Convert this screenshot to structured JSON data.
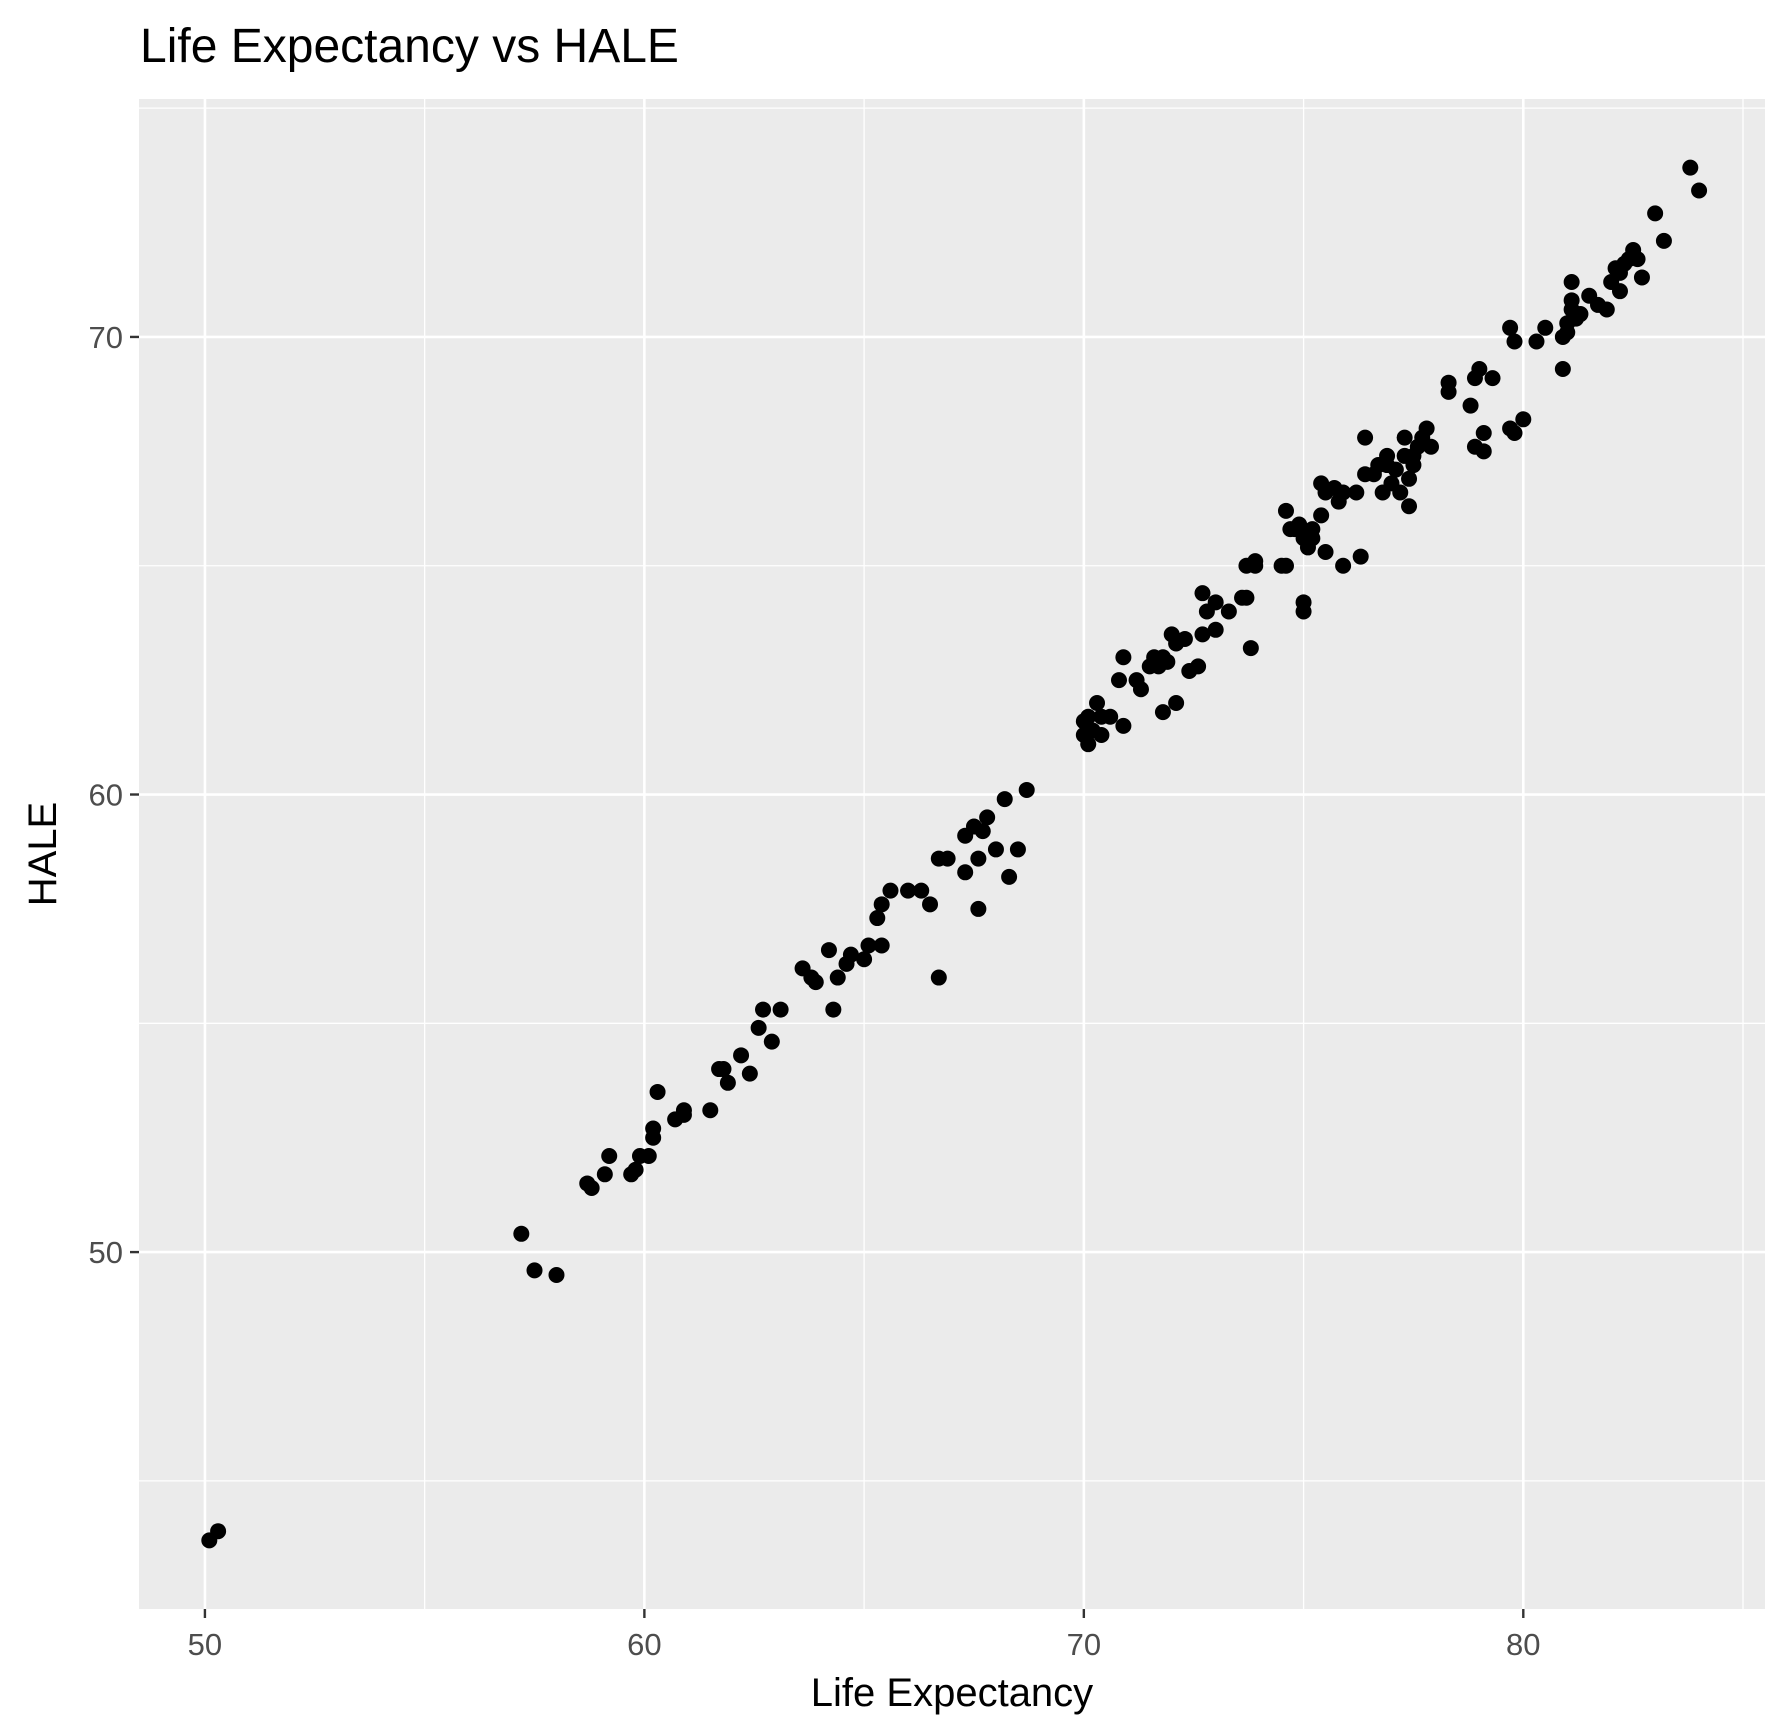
{
  "chart_data": {
    "type": "scatter",
    "title": "Life Expectancy vs HALE",
    "xlabel": "Life Expectancy",
    "ylabel": "HALE",
    "xlim": [
      48.5,
      85.5
    ],
    "ylim": [
      42.2,
      75.2
    ],
    "x_ticks_major": [
      50,
      60,
      70,
      80
    ],
    "x_ticks_minor": [
      55,
      65,
      75,
      85
    ],
    "y_ticks_major": [
      50,
      60,
      70
    ],
    "y_ticks_minor": [
      45,
      55,
      65,
      75
    ],
    "grid": true,
    "legend": "none",
    "point_color": "#000000",
    "panel_background": "#ebebeb",
    "grid_color": "#ffffff",
    "points": [
      [
        50.1,
        43.7
      ],
      [
        50.3,
        43.9
      ],
      [
        57.2,
        50.4
      ],
      [
        57.5,
        49.6
      ],
      [
        58.0,
        49.5
      ],
      [
        58.7,
        51.5
      ],
      [
        58.8,
        51.4
      ],
      [
        59.1,
        51.7
      ],
      [
        59.2,
        52.1
      ],
      [
        59.7,
        51.7
      ],
      [
        59.8,
        51.8
      ],
      [
        59.9,
        52.1
      ],
      [
        60.1,
        52.1
      ],
      [
        60.2,
        52.5
      ],
      [
        60.2,
        52.7
      ],
      [
        60.3,
        53.5
      ],
      [
        60.7,
        52.9
      ],
      [
        60.9,
        53.0
      ],
      [
        60.9,
        53.1
      ],
      [
        61.5,
        53.1
      ],
      [
        61.7,
        54.0
      ],
      [
        61.8,
        54.0
      ],
      [
        61.9,
        53.7
      ],
      [
        62.2,
        54.3
      ],
      [
        62.4,
        53.9
      ],
      [
        62.6,
        54.9
      ],
      [
        62.7,
        55.3
      ],
      [
        62.9,
        54.6
      ],
      [
        63.1,
        55.3
      ],
      [
        63.6,
        56.2
      ],
      [
        63.8,
        56.0
      ],
      [
        63.9,
        55.9
      ],
      [
        64.2,
        56.6
      ],
      [
        64.3,
        55.3
      ],
      [
        64.4,
        56.0
      ],
      [
        64.6,
        56.3
      ],
      [
        64.7,
        56.5
      ],
      [
        65.0,
        56.4
      ],
      [
        65.1,
        56.7
      ],
      [
        65.3,
        57.3
      ],
      [
        65.4,
        57.6
      ],
      [
        65.4,
        56.7
      ],
      [
        65.6,
        57.9
      ],
      [
        66.0,
        57.9
      ],
      [
        66.3,
        57.9
      ],
      [
        66.5,
        57.6
      ],
      [
        66.7,
        58.6
      ],
      [
        66.7,
        56.0
      ],
      [
        66.9,
        58.6
      ],
      [
        67.3,
        59.1
      ],
      [
        67.3,
        58.3
      ],
      [
        67.5,
        59.3
      ],
      [
        67.6,
        58.6
      ],
      [
        67.6,
        57.5
      ],
      [
        67.7,
        59.2
      ],
      [
        67.8,
        59.5
      ],
      [
        68.0,
        58.8
      ],
      [
        68.2,
        59.9
      ],
      [
        68.3,
        58.2
      ],
      [
        68.5,
        58.8
      ],
      [
        68.7,
        60.1
      ],
      [
        70.0,
        61.3
      ],
      [
        70.0,
        61.6
      ],
      [
        70.1,
        61.7
      ],
      [
        70.1,
        61.1
      ],
      [
        70.2,
        61.4
      ],
      [
        70.3,
        62.0
      ],
      [
        70.4,
        61.7
      ],
      [
        70.4,
        61.3
      ],
      [
        70.6,
        61.7
      ],
      [
        70.8,
        62.5
      ],
      [
        70.9,
        63.0
      ],
      [
        70.9,
        61.5
      ],
      [
        71.2,
        62.5
      ],
      [
        71.3,
        62.3
      ],
      [
        71.5,
        62.8
      ],
      [
        71.6,
        63.0
      ],
      [
        71.7,
        62.8
      ],
      [
        71.8,
        61.8
      ],
      [
        71.8,
        63.0
      ],
      [
        71.9,
        62.9
      ],
      [
        72.0,
        63.5
      ],
      [
        72.1,
        63.3
      ],
      [
        72.1,
        62.0
      ],
      [
        72.3,
        63.4
      ],
      [
        72.4,
        62.7
      ],
      [
        72.6,
        62.8
      ],
      [
        72.7,
        63.5
      ],
      [
        72.7,
        64.4
      ],
      [
        72.8,
        64.0
      ],
      [
        73.0,
        64.2
      ],
      [
        73.0,
        63.6
      ],
      [
        73.3,
        64.0
      ],
      [
        73.6,
        64.3
      ],
      [
        73.7,
        64.3
      ],
      [
        73.7,
        65.0
      ],
      [
        73.8,
        63.2
      ],
      [
        73.9,
        65.1
      ],
      [
        73.9,
        65.0
      ],
      [
        74.5,
        65.0
      ],
      [
        74.6,
        65.0
      ],
      [
        74.6,
        66.2
      ],
      [
        74.7,
        65.8
      ],
      [
        74.8,
        65.8
      ],
      [
        74.9,
        65.9
      ],
      [
        75.0,
        65.6
      ],
      [
        75.0,
        64.2
      ],
      [
        75.0,
        64.0
      ],
      [
        75.1,
        65.4
      ],
      [
        75.2,
        65.8
      ],
      [
        75.2,
        65.6
      ],
      [
        75.4,
        66.8
      ],
      [
        75.4,
        66.1
      ],
      [
        75.5,
        66.6
      ],
      [
        75.5,
        65.3
      ],
      [
        75.7,
        66.7
      ],
      [
        75.8,
        66.4
      ],
      [
        75.9,
        65.0
      ],
      [
        75.9,
        66.6
      ],
      [
        76.2,
        66.6
      ],
      [
        76.3,
        65.2
      ],
      [
        76.4,
        67.8
      ],
      [
        76.4,
        67.0
      ],
      [
        76.6,
        67.0
      ],
      [
        76.7,
        67.2
      ],
      [
        76.8,
        66.6
      ],
      [
        76.9,
        67.2
      ],
      [
        76.9,
        67.4
      ],
      [
        77.0,
        66.8
      ],
      [
        77.1,
        67.1
      ],
      [
        77.2,
        66.6
      ],
      [
        77.3,
        67.8
      ],
      [
        77.3,
        67.4
      ],
      [
        77.4,
        66.3
      ],
      [
        77.4,
        66.9
      ],
      [
        77.5,
        67.4
      ],
      [
        77.5,
        67.2
      ],
      [
        77.6,
        67.6
      ],
      [
        77.7,
        67.8
      ],
      [
        77.8,
        68.0
      ],
      [
        77.9,
        67.6
      ],
      [
        78.3,
        69.0
      ],
      [
        78.3,
        68.8
      ],
      [
        78.8,
        68.5
      ],
      [
        78.9,
        69.1
      ],
      [
        78.9,
        67.6
      ],
      [
        79.0,
        69.3
      ],
      [
        79.1,
        67.9
      ],
      [
        79.1,
        67.5
      ],
      [
        79.3,
        69.1
      ],
      [
        79.7,
        68.0
      ],
      [
        79.7,
        70.2
      ],
      [
        79.8,
        69.9
      ],
      [
        79.8,
        67.9
      ],
      [
        80.0,
        68.2
      ],
      [
        80.3,
        69.9
      ],
      [
        80.5,
        70.2
      ],
      [
        80.9,
        69.3
      ],
      [
        80.9,
        70.0
      ],
      [
        81.0,
        70.1
      ],
      [
        81.0,
        70.3
      ],
      [
        81.1,
        70.6
      ],
      [
        81.1,
        70.8
      ],
      [
        81.1,
        71.2
      ],
      [
        81.2,
        70.4
      ],
      [
        81.3,
        70.5
      ],
      [
        81.5,
        70.9
      ],
      [
        81.7,
        70.7
      ],
      [
        81.9,
        70.6
      ],
      [
        82.0,
        71.2
      ],
      [
        82.1,
        71.5
      ],
      [
        82.2,
        71.4
      ],
      [
        82.2,
        71.0
      ],
      [
        82.3,
        71.6
      ],
      [
        82.4,
        71.7
      ],
      [
        82.5,
        71.9
      ],
      [
        82.6,
        71.7
      ],
      [
        82.7,
        71.3
      ],
      [
        83.0,
        72.7
      ],
      [
        83.2,
        72.1
      ],
      [
        83.8,
        73.7
      ],
      [
        84.0,
        73.2
      ]
    ]
  }
}
